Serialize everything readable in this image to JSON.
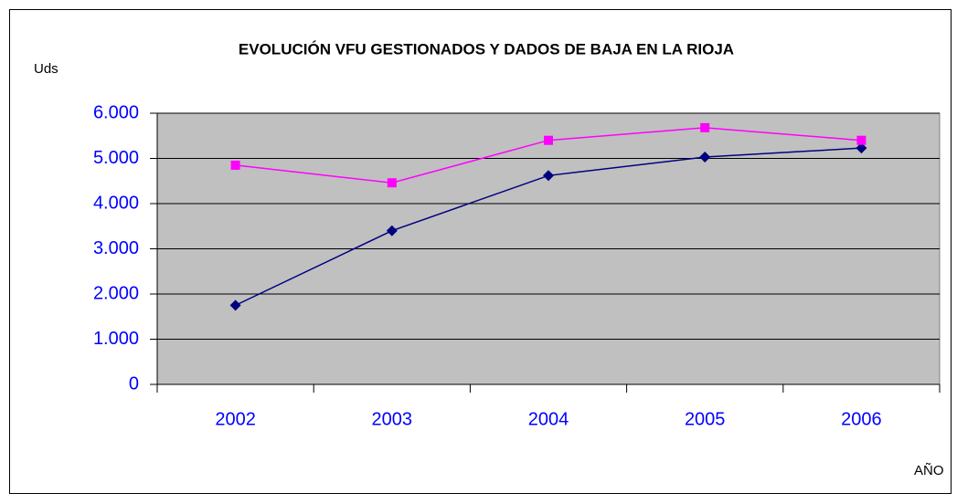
{
  "chart_data": {
    "type": "line",
    "title": "EVOLUCIÓN VFU GESTIONADOS Y DADOS DE BAJA EN LA RIOJA",
    "y_label": "Uds",
    "x_label": "AÑO",
    "categories": [
      "2002",
      "2003",
      "2004",
      "2005",
      "2006"
    ],
    "series": [
      {
        "color": "#000080",
        "marker": "diamond",
        "values": [
          1750,
          3400,
          4620,
          5030,
          5230
        ]
      },
      {
        "color": "#ff00ff",
        "marker": "square",
        "values": [
          4850,
          4460,
          5400,
          5680,
          5400
        ]
      }
    ],
    "ylim": [
      0,
      6000
    ],
    "yticks": [
      0,
      {
        "value": 1000,
        "label": "1.000"
      },
      {
        "value": 2000,
        "label": "2.000"
      },
      {
        "value": 3000,
        "label": "3.000"
      },
      {
        "value": 4000,
        "label": "4.000"
      },
      {
        "value": 5000,
        "label": "5.000"
      },
      {
        "value": 6000,
        "label": "6.000"
      }
    ],
    "grid": true
  }
}
